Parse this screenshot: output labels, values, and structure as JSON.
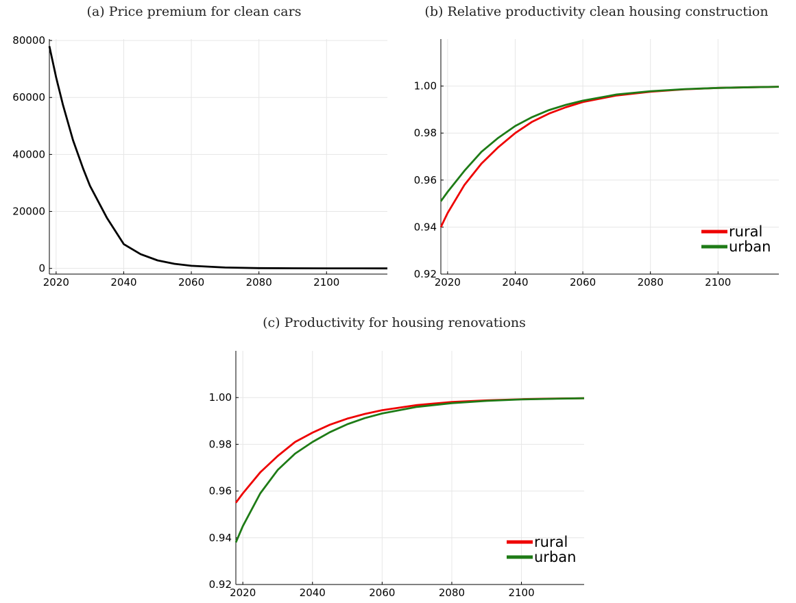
{
  "chart_data": [
    {
      "id": "a",
      "type": "line",
      "title": "(a) Price premium for clean cars",
      "xlabel": "",
      "ylabel": "",
      "xlim": [
        2018,
        2118
      ],
      "ylim": [
        -2000,
        80500
      ],
      "xticks": [
        2020,
        2040,
        2060,
        2080,
        2100
      ],
      "yticks": [
        0,
        20000,
        40000,
        60000,
        80000
      ],
      "ytick_labels": [
        "0",
        "20000",
        "40000",
        "60000",
        "80000"
      ],
      "grid": true,
      "legend": null,
      "x": [
        2018,
        2020,
        2022,
        2025,
        2028,
        2030,
        2035,
        2040,
        2045,
        2050,
        2055,
        2060,
        2070,
        2080,
        2090,
        2100,
        2110,
        2118
      ],
      "series": [
        {
          "color": "#000000",
          "values": [
            78000,
            67000,
            57500,
            45000,
            35000,
            29000,
            17800,
            8500,
            5000,
            2800,
            1600,
            900,
            300,
            100,
            40,
            20,
            10,
            5
          ]
        }
      ]
    },
    {
      "id": "b",
      "type": "line",
      "title": "(b) Relative productivity clean housing construction",
      "xlabel": "",
      "ylabel": "",
      "xlim": [
        2018,
        2118
      ],
      "ylim": [
        0.92,
        1.02
      ],
      "xticks": [
        2020,
        2040,
        2060,
        2080,
        2100
      ],
      "yticks": [
        0.92,
        0.94,
        0.96,
        0.98,
        1.0
      ],
      "ytick_labels": [
        "0.92",
        "0.94",
        "0.96",
        "0.98",
        "1.00"
      ],
      "grid": true,
      "legend": "bottom-right",
      "x": [
        2018,
        2020,
        2025,
        2030,
        2035,
        2040,
        2045,
        2050,
        2055,
        2060,
        2070,
        2080,
        2090,
        2100,
        2110,
        2118
      ],
      "series": [
        {
          "name": "rural",
          "color": "#ee0000",
          "values": [
            0.94,
            0.946,
            0.958,
            0.967,
            0.974,
            0.98,
            0.9848,
            0.9883,
            0.991,
            0.9932,
            0.996,
            0.9976,
            0.9986,
            0.9992,
            0.9995,
            0.9997
          ]
        },
        {
          "name": "urban",
          "color": "#1e7b16",
          "values": [
            0.951,
            0.955,
            0.964,
            0.972,
            0.978,
            0.983,
            0.9868,
            0.9898,
            0.992,
            0.9938,
            0.9964,
            0.9978,
            0.9987,
            0.9992,
            0.9995,
            0.9997
          ]
        }
      ]
    },
    {
      "id": "c",
      "type": "line",
      "title": "(c) Productivity for housing renovations",
      "xlabel": "",
      "ylabel": "",
      "xlim": [
        2018,
        2118
      ],
      "ylim": [
        0.92,
        1.02
      ],
      "xticks": [
        2020,
        2040,
        2060,
        2080,
        2100
      ],
      "yticks": [
        0.92,
        0.94,
        0.96,
        0.98,
        1.0
      ],
      "ytick_labels": [
        "0.92",
        "0.94",
        "0.96",
        "0.98",
        "1.00"
      ],
      "grid": true,
      "legend": "bottom-right",
      "x": [
        2018,
        2020,
        2025,
        2030,
        2035,
        2040,
        2045,
        2050,
        2055,
        2060,
        2070,
        2080,
        2090,
        2100,
        2110,
        2118
      ],
      "series": [
        {
          "name": "rural",
          "color": "#ee0000",
          "values": [
            0.955,
            0.959,
            0.968,
            0.975,
            0.981,
            0.985,
            0.9884,
            0.991,
            0.993,
            0.9946,
            0.9968,
            0.9981,
            0.9988,
            0.9993,
            0.9996,
            0.9997
          ]
        },
        {
          "name": "urban",
          "color": "#1e7b16",
          "values": [
            0.938,
            0.945,
            0.959,
            0.969,
            0.976,
            0.981,
            0.9852,
            0.9886,
            0.9912,
            0.9932,
            0.996,
            0.9976,
            0.9986,
            0.9992,
            0.9995,
            0.9997
          ]
        }
      ]
    }
  ]
}
